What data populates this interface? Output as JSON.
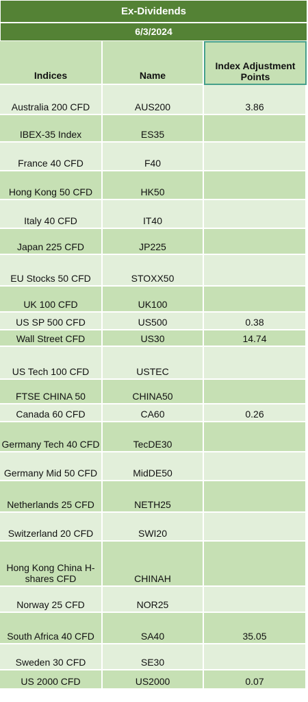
{
  "title": "Ex-Dividends",
  "date": "6/3/2024",
  "columns": [
    "Indices",
    "Name",
    "Index Adjustment Points"
  ],
  "rows": [
    {
      "index": "Australia 200 CFD",
      "name": "AUS200",
      "points": "3.86"
    },
    {
      "index": "IBEX-35 Index",
      "name": "ES35",
      "points": ""
    },
    {
      "index": "France 40 CFD",
      "name": "F40",
      "points": ""
    },
    {
      "index": "Hong Kong 50 CFD",
      "name": "HK50",
      "points": ""
    },
    {
      "index": "Italy 40 CFD",
      "name": "IT40",
      "points": ""
    },
    {
      "index": "Japan 225 CFD",
      "name": "JP225",
      "points": ""
    },
    {
      "index": "EU Stocks 50 CFD",
      "name": "STOXX50",
      "points": ""
    },
    {
      "index": "UK 100 CFD",
      "name": "UK100",
      "points": ""
    },
    {
      "index": "US SP 500 CFD",
      "name": "US500",
      "points": "0.38"
    },
    {
      "index": "Wall Street CFD",
      "name": "US30",
      "points": "14.74"
    },
    {
      "index": "US Tech 100 CFD",
      "name": "USTEC",
      "points": ""
    },
    {
      "index": "FTSE CHINA 50",
      "name": "CHINA50",
      "points": ""
    },
    {
      "index": "Canada 60 CFD",
      "name": "CA60",
      "points": "0.26"
    },
    {
      "index": "Germany Tech 40 CFD",
      "name": "TecDE30",
      "points": ""
    },
    {
      "index": "Germany Mid 50 CFD",
      "name": "MidDE50",
      "points": ""
    },
    {
      "index": "Netherlands 25 CFD",
      "name": "NETH25",
      "points": ""
    },
    {
      "index": "Switzerland 20 CFD",
      "name": "SWI20",
      "points": ""
    },
    {
      "index": "Hong Kong China H-shares CFD",
      "name": "CHINAH",
      "points": ""
    },
    {
      "index": "Norway 25 CFD",
      "name": "NOR25",
      "points": ""
    },
    {
      "index": "South Africa 40 CFD",
      "name": "SA40",
      "points": "35.05"
    },
    {
      "index": "Sweden 30 CFD",
      "name": "SE30",
      "points": ""
    },
    {
      "index": "US 2000 CFD",
      "name": "US2000",
      "points": "0.07"
    }
  ]
}
